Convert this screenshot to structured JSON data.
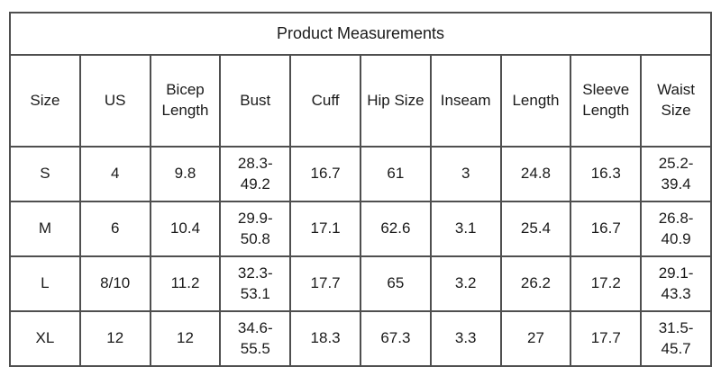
{
  "table": {
    "title": "Product Measurements",
    "columns": [
      "Size",
      "US",
      "Bicep Length",
      "Bust",
      "Cuff",
      "Hip Size",
      "Inseam",
      "Length",
      "Sleeve Length",
      "Waist Size"
    ],
    "rows": [
      [
        "S",
        "4",
        "9.8",
        "28.3-49.2",
        "16.7",
        "61",
        "3",
        "24.8",
        "16.3",
        "25.2-39.4"
      ],
      [
        "M",
        "6",
        "10.4",
        "29.9-50.8",
        "17.1",
        "62.6",
        "3.1",
        "25.4",
        "16.7",
        "26.8-40.9"
      ],
      [
        "L",
        "8/10",
        "11.2",
        "32.3-53.1",
        "17.7",
        "65",
        "3.2",
        "26.2",
        "17.2",
        "29.1-43.3"
      ],
      [
        "XL",
        "12",
        "12",
        "34.6-55.5",
        "18.3",
        "67.3",
        "3.3",
        "27",
        "17.7",
        "31.5-45.7"
      ]
    ],
    "colors": {
      "border": "#4f4f4f",
      "text": "#1a1a1a",
      "background": "#ffffff"
    }
  }
}
